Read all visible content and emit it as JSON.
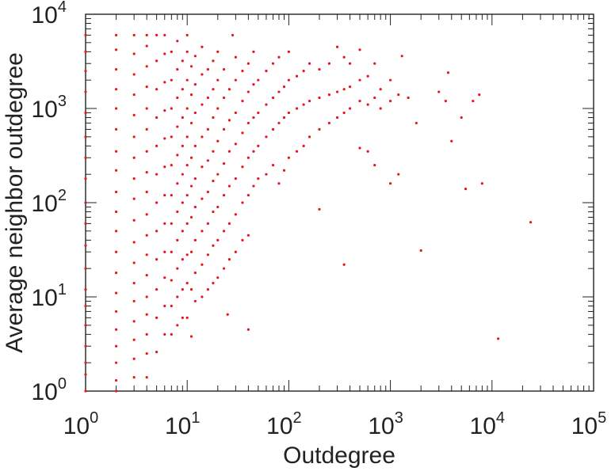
{
  "chart_data": {
    "type": "scatter",
    "title": "",
    "xlabel": "Outdegree",
    "ylabel": "Average neighbor outdegree",
    "xscale": "log",
    "yscale": "log",
    "xlim": [
      1,
      100000
    ],
    "ylim": [
      1,
      10000
    ],
    "x_ticks": [
      {
        "base": "10",
        "exp": "0"
      },
      {
        "base": "10",
        "exp": "1"
      },
      {
        "base": "10",
        "exp": "2"
      },
      {
        "base": "10",
        "exp": "3"
      },
      {
        "base": "10",
        "exp": "4"
      },
      {
        "base": "10",
        "exp": "5"
      }
    ],
    "y_ticks": [
      {
        "base": "10",
        "exp": "0"
      },
      {
        "base": "10",
        "exp": "1"
      },
      {
        "base": "10",
        "exp": "2"
      },
      {
        "base": "10",
        "exp": "3"
      },
      {
        "base": "10",
        "exp": "4"
      }
    ],
    "grid": false,
    "marker_color": "#e8141e",
    "series": [
      {
        "points": [
          [
            1,
            1
          ],
          [
            1,
            1.5
          ],
          [
            1,
            2
          ],
          [
            1,
            3
          ],
          [
            1,
            5
          ],
          [
            1,
            8
          ],
          [
            1,
            12
          ],
          [
            1,
            20
          ],
          [
            1,
            35
          ],
          [
            1,
            60
          ],
          [
            1,
            100
          ],
          [
            1,
            180
          ],
          [
            1,
            300
          ],
          [
            1,
            500
          ],
          [
            1,
            900
          ],
          [
            1,
            1500
          ],
          [
            1,
            2500
          ],
          [
            1,
            4000
          ],
          [
            1,
            6000
          ],
          [
            2,
            1
          ],
          [
            2,
            1.3
          ],
          [
            2,
            2
          ],
          [
            2,
            3
          ],
          [
            2,
            4.5
          ],
          [
            2,
            7
          ],
          [
            2,
            11
          ],
          [
            2,
            18
          ],
          [
            2,
            30
          ],
          [
            2,
            50
          ],
          [
            2,
            80
          ],
          [
            2,
            130
          ],
          [
            2,
            220
          ],
          [
            2,
            350
          ],
          [
            2,
            600
          ],
          [
            2,
            1000
          ],
          [
            2,
            1600
          ],
          [
            2,
            2600
          ],
          [
            2,
            4200
          ],
          [
            2,
            6000
          ],
          [
            3,
            1.4
          ],
          [
            3,
            2.2
          ],
          [
            3,
            3.5
          ],
          [
            3,
            5.5
          ],
          [
            3,
            9
          ],
          [
            3,
            14
          ],
          [
            3,
            23
          ],
          [
            3,
            38
          ],
          [
            3,
            65
          ],
          [
            3,
            110
          ],
          [
            3,
            180
          ],
          [
            3,
            300
          ],
          [
            3,
            500
          ],
          [
            3,
            850
          ],
          [
            3,
            1400
          ],
          [
            3,
            2300
          ],
          [
            3,
            3800
          ],
          [
            3,
            6000
          ],
          [
            4,
            1.4
          ],
          [
            4,
            2.5
          ],
          [
            4,
            4
          ],
          [
            4,
            6.5
          ],
          [
            4,
            10
          ],
          [
            4,
            17
          ],
          [
            4,
            28
          ],
          [
            4,
            45
          ],
          [
            4,
            75
          ],
          [
            4,
            130
          ],
          [
            4,
            210
          ],
          [
            4,
            350
          ],
          [
            4,
            600
          ],
          [
            4,
            1000
          ],
          [
            4,
            1700
          ],
          [
            4,
            2800
          ],
          [
            4,
            4600
          ],
          [
            4,
            6000
          ],
          [
            5,
            2.6
          ],
          [
            5,
            6
          ],
          [
            5,
            12
          ],
          [
            5,
            25
          ],
          [
            5,
            50
          ],
          [
            5,
            100
          ],
          [
            5,
            200
          ],
          [
            5,
            400
          ],
          [
            5,
            800
          ],
          [
            5,
            1600
          ],
          [
            5,
            3200
          ],
          [
            5,
            6000
          ],
          [
            6,
            4
          ],
          [
            6,
            8
          ],
          [
            6,
            16
          ],
          [
            6,
            30
          ],
          [
            6,
            60
          ],
          [
            6,
            120
          ],
          [
            6,
            240
          ],
          [
            6,
            480
          ],
          [
            6,
            950
          ],
          [
            6,
            1900
          ],
          [
            6,
            3800
          ],
          [
            6,
            6000
          ],
          [
            7,
            4
          ],
          [
            7,
            8
          ],
          [
            7,
            15
          ],
          [
            7,
            30
          ],
          [
            7,
            60
          ],
          [
            7,
            120
          ],
          [
            7,
            250
          ],
          [
            7,
            500
          ],
          [
            7,
            1000
          ],
          [
            7,
            2000
          ],
          [
            7,
            4000
          ],
          [
            8,
            5
          ],
          [
            8,
            10
          ],
          [
            8,
            20
          ],
          [
            8,
            40
          ],
          [
            8,
            80
          ],
          [
            8,
            160
          ],
          [
            8,
            320
          ],
          [
            8,
            640
          ],
          [
            8,
            1300
          ],
          [
            8,
            2600
          ],
          [
            8,
            5200
          ],
          [
            9,
            6
          ],
          [
            9,
            12
          ],
          [
            9,
            25
          ],
          [
            9,
            50
          ],
          [
            9,
            100
          ],
          [
            9,
            200
          ],
          [
            9,
            400
          ],
          [
            9,
            800
          ],
          [
            9,
            1600
          ],
          [
            9,
            3200
          ],
          [
            10,
            6
          ],
          [
            10,
            14
          ],
          [
            10,
            28
          ],
          [
            10,
            60
          ],
          [
            10,
            120
          ],
          [
            10,
            250
          ],
          [
            10,
            500
          ],
          [
            10,
            1000
          ],
          [
            10,
            2000
          ],
          [
            10,
            4000
          ],
          [
            10,
            6000
          ],
          [
            11,
            3.8
          ],
          [
            11,
            12
          ],
          [
            11,
            30
          ],
          [
            11,
            70
          ],
          [
            11,
            150
          ],
          [
            11,
            300
          ],
          [
            11,
            700
          ],
          [
            11,
            1400
          ],
          [
            11,
            2800
          ],
          [
            12,
            9
          ],
          [
            12,
            18
          ],
          [
            12,
            40
          ],
          [
            12,
            90
          ],
          [
            12,
            180
          ],
          [
            12,
            400
          ],
          [
            12,
            900
          ],
          [
            12,
            1800
          ],
          [
            12,
            3600
          ],
          [
            14,
            10
          ],
          [
            14,
            22
          ],
          [
            14,
            50
          ],
          [
            14,
            110
          ],
          [
            14,
            240
          ],
          [
            14,
            500
          ],
          [
            14,
            1100
          ],
          [
            14,
            2300
          ],
          [
            14,
            4500
          ],
          [
            16,
            12
          ],
          [
            16,
            28
          ],
          [
            16,
            60
          ],
          [
            16,
            130
          ],
          [
            16,
            280
          ],
          [
            16,
            600
          ],
          [
            16,
            1300
          ],
          [
            16,
            2600
          ],
          [
            18,
            14
          ],
          [
            18,
            35
          ],
          [
            18,
            80
          ],
          [
            18,
            170
          ],
          [
            18,
            350
          ],
          [
            18,
            800
          ],
          [
            18,
            1600
          ],
          [
            18,
            3200
          ],
          [
            20,
            16
          ],
          [
            20,
            40
          ],
          [
            20,
            90
          ],
          [
            20,
            200
          ],
          [
            20,
            450
          ],
          [
            20,
            1000
          ],
          [
            20,
            2000
          ],
          [
            20,
            4000
          ],
          [
            23,
            20
          ],
          [
            23,
            50
          ],
          [
            23,
            120
          ],
          [
            23,
            260
          ],
          [
            23,
            600
          ],
          [
            23,
            1300
          ],
          [
            23,
            2600
          ],
          [
            25,
            6.5
          ],
          [
            26,
            25
          ],
          [
            26,
            60
          ],
          [
            26,
            150
          ],
          [
            26,
            350
          ],
          [
            26,
            750
          ],
          [
            26,
            1600
          ],
          [
            28,
            6000
          ],
          [
            30,
            30
          ],
          [
            30,
            75
          ],
          [
            30,
            180
          ],
          [
            30,
            420
          ],
          [
            30,
            900
          ],
          [
            30,
            2000
          ],
          [
            30,
            3500
          ],
          [
            35,
            40
          ],
          [
            35,
            100
          ],
          [
            35,
            240
          ],
          [
            35,
            550
          ],
          [
            35,
            1200
          ],
          [
            35,
            2500
          ],
          [
            40,
            4.5
          ],
          [
            40,
            45
          ],
          [
            40,
            120
          ],
          [
            40,
            300
          ],
          [
            40,
            700
          ],
          [
            40,
            1500
          ],
          [
            40,
            3000
          ],
          [
            45,
            150
          ],
          [
            45,
            350
          ],
          [
            45,
            800
          ],
          [
            45,
            1800
          ],
          [
            45,
            4000
          ],
          [
            50,
            180
          ],
          [
            50,
            400
          ],
          [
            50,
            900
          ],
          [
            50,
            2000
          ],
          [
            60,
            200
          ],
          [
            60,
            500
          ],
          [
            60,
            1100
          ],
          [
            60,
            2500
          ],
          [
            70,
            250
          ],
          [
            70,
            600
          ],
          [
            70,
            1300
          ],
          [
            70,
            3000
          ],
          [
            80,
            160
          ],
          [
            80,
            700
          ],
          [
            80,
            1500
          ],
          [
            80,
            3500
          ],
          [
            90,
            220
          ],
          [
            90,
            800
          ],
          [
            90,
            1700
          ],
          [
            100,
            300
          ],
          [
            100,
            900
          ],
          [
            100,
            2000
          ],
          [
            100,
            4000
          ],
          [
            120,
            350
          ],
          [
            120,
            1000
          ],
          [
            120,
            2200
          ],
          [
            140,
            400
          ],
          [
            140,
            1100
          ],
          [
            140,
            2500
          ],
          [
            160,
            500
          ],
          [
            160,
            1200
          ],
          [
            160,
            3000
          ],
          [
            200,
            85
          ],
          [
            200,
            600
          ],
          [
            200,
            1300
          ],
          [
            200,
            2600
          ],
          [
            250,
            700
          ],
          [
            250,
            1400
          ],
          [
            250,
            3000
          ],
          [
            300,
            800
          ],
          [
            300,
            1500
          ],
          [
            300,
            4500
          ],
          [
            350,
            22
          ],
          [
            350,
            900
          ],
          [
            350,
            1600
          ],
          [
            350,
            3500
          ],
          [
            400,
            1000
          ],
          [
            400,
            1700
          ],
          [
            400,
            3000
          ],
          [
            500,
            380
          ],
          [
            500,
            1200
          ],
          [
            500,
            2000
          ],
          [
            500,
            4200
          ],
          [
            600,
            350
          ],
          [
            600,
            1100
          ],
          [
            600,
            2200
          ],
          [
            700,
            250
          ],
          [
            700,
            1300
          ],
          [
            700,
            3000
          ],
          [
            800,
            1000
          ],
          [
            800,
            1600
          ],
          [
            1000,
            160
          ],
          [
            1000,
            1200
          ],
          [
            1000,
            2000
          ],
          [
            1200,
            200
          ],
          [
            1200,
            1400
          ],
          [
            1300,
            3600
          ],
          [
            1500,
            1300
          ],
          [
            1800,
            700
          ],
          [
            2000,
            31
          ],
          [
            3000,
            1500
          ],
          [
            3500,
            1200
          ],
          [
            3700,
            2400
          ],
          [
            4000,
            450
          ],
          [
            5000,
            800
          ],
          [
            5500,
            140
          ],
          [
            6500,
            1200
          ],
          [
            7500,
            1400
          ],
          [
            8000,
            160
          ],
          [
            11500,
            3.6
          ],
          [
            24000,
            62
          ]
        ]
      }
    ]
  }
}
